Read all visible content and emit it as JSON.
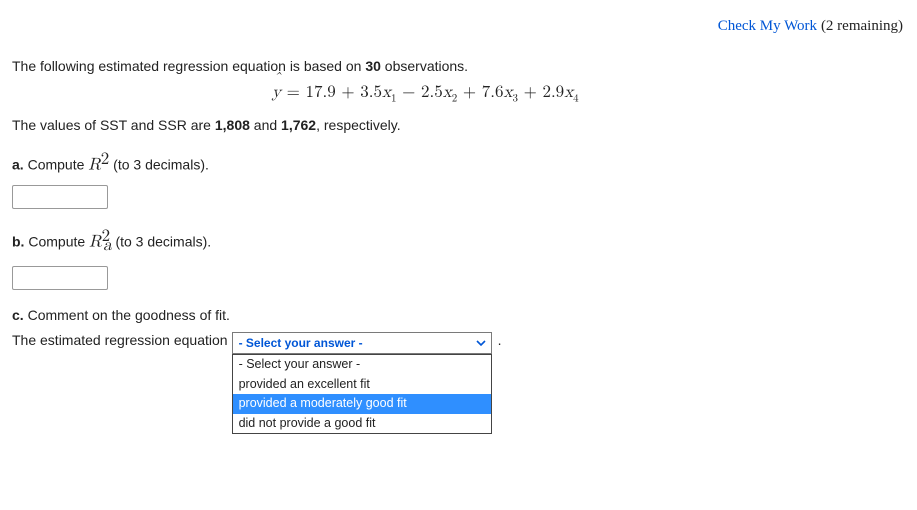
{
  "header": {
    "check_label": "Check My Work",
    "remaining": "(2 remaining)"
  },
  "problem": {
    "intro_pre": "The following estimated regression equation is based on ",
    "n_obs": "30",
    "intro_post": " observations.",
    "equation": {
      "yhat": "ŷ",
      "eq_sign": " = ",
      "c0": "17.9",
      "plus1": " + ",
      "c1": "3.5",
      "v1": "x",
      "s1": "1",
      "minus": " − ",
      "c2": "2.5",
      "v2": "x",
      "s2": "2",
      "plus2": " + ",
      "c3": "7.6",
      "v3": "x",
      "s3": "3",
      "plus3": " + ",
      "c4": "2.9",
      "v4": "x",
      "s4": "4"
    },
    "sst_line_pre": "The values of SST and SSR are ",
    "sst": "1,808",
    "and": " and ",
    "ssr": "1,762",
    "sst_line_post": ", respectively.",
    "a_label": "a.",
    "a_text_pre": " Compute ",
    "a_Rsym": "R",
    "a_sup": "2",
    "a_text_post": " (to 3 decimals).",
    "b_label": "b.",
    "b_text_pre": " Compute ",
    "b_Rsym": "R",
    "b_sup": "2",
    "b_sub": "a",
    "b_text_post": " (to 3 decimals).",
    "c_label": "c.",
    "c_text": " Comment on the goodness of fit.",
    "c_lead": "The estimated regression equation ",
    "period": "."
  },
  "select": {
    "placeholder": "- Select your answer -",
    "options": [
      "- Select your answer -",
      "provided an excellent fit",
      "provided a moderately good fit",
      "did not provide a good fit"
    ],
    "highlighted_index": 2
  }
}
